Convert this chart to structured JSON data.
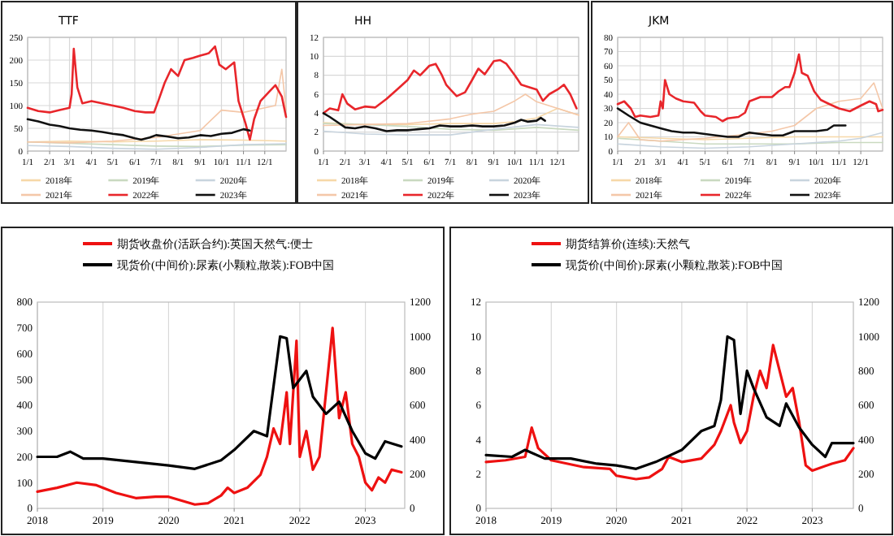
{
  "chart_data": [
    {
      "type": "line",
      "title": "TTF",
      "xlim": [
        "--01-01",
        "--12-31"
      ],
      "xticks": [
        {
          "value": "--01-01",
          "label": "1/1"
        },
        {
          "value": "--02-01",
          "label": "2/1"
        },
        {
          "value": "--03-01",
          "label": "3/1"
        },
        {
          "value": "--04-01",
          "label": "4/1"
        },
        {
          "value": "--05-01",
          "label": "5/1"
        },
        {
          "value": "--06-01",
          "label": "6/1"
        },
        {
          "value": "--07-01",
          "label": "7/1"
        },
        {
          "value": "--08-01",
          "label": "8/1"
        },
        {
          "value": "--09-01",
          "label": "9/1"
        },
        {
          "value": "--10-01",
          "label": "10/1"
        },
        {
          "value": "--11-01",
          "label": "11/1"
        },
        {
          "value": "--12-01",
          "label": "12/1"
        }
      ],
      "ylim": [
        0,
        250
      ],
      "yticks": [
        0,
        50,
        100,
        150,
        200,
        250
      ],
      "grid": true,
      "legend": "bottom",
      "series": [
        {
          "name": "2018年",
          "color": "#f6d8a8",
          "x": [
            "--01-01",
            "--03-01",
            "--05-01",
            "--07-01",
            "--09-01",
            "--11-01",
            "--12-31"
          ],
          "values": [
            20,
            22,
            20,
            22,
            25,
            24,
            22
          ]
        },
        {
          "name": "2019年",
          "color": "#c9d9c0",
          "x": [
            "--01-01",
            "--03-01",
            "--05-01",
            "--07-01",
            "--09-01",
            "--11-01",
            "--12-31"
          ],
          "values": [
            20,
            17,
            14,
            11,
            10,
            13,
            14
          ]
        },
        {
          "name": "2020年",
          "color": "#c8d4de",
          "x": [
            "--01-01",
            "--03-01",
            "--05-01",
            "--07-01",
            "--09-01",
            "--11-01",
            "--12-31"
          ],
          "values": [
            12,
            10,
            6,
            4,
            8,
            14,
            16
          ]
        },
        {
          "name": "2021年",
          "color": "#f4c7a8",
          "x": [
            "--01-01",
            "--03-01",
            "--05-01",
            "--07-01",
            "--09-01",
            "--10-01",
            "--11-01",
            "--12-01",
            "--12-16",
            "--12-25",
            "--12-31"
          ],
          "values": [
            20,
            18,
            22,
            30,
            45,
            90,
            85,
            95,
            100,
            180,
            90
          ]
        },
        {
          "name": "2022年",
          "color": "#e8262b",
          "x": [
            "--01-01",
            "--01-16",
            "--02-01",
            "--02-15",
            "--03-01",
            "--03-04",
            "--03-07",
            "--03-12",
            "--03-19",
            "--04-01",
            "--04-16",
            "--05-01",
            "--05-16",
            "--06-01",
            "--06-16",
            "--06-28",
            "--07-04",
            "--07-13",
            "--07-22",
            "--08-01",
            "--08-10",
            "--08-22",
            "--09-01",
            "--09-13",
            "--09-22",
            "--09-28",
            "--10-07",
            "--10-19",
            "--10-25",
            "--11-04",
            "--11-10",
            "--11-16",
            "--11-25",
            "--12-07",
            "--12-16",
            "--12-25",
            "--12-31"
          ],
          "values": [
            95,
            88,
            85,
            90,
            95,
            125,
            225,
            140,
            105,
            110,
            105,
            100,
            95,
            88,
            85,
            85,
            110,
            150,
            180,
            165,
            200,
            205,
            210,
            215,
            230,
            190,
            180,
            195,
            110,
            60,
            25,
            70,
            110,
            130,
            145,
            120,
            75
          ]
        },
        {
          "name": "2023年",
          "color": "#111111",
          "x": [
            "--01-01",
            "--01-16",
            "--02-01",
            "--02-15",
            "--03-01",
            "--03-16",
            "--04-01",
            "--04-16",
            "--05-01",
            "--05-16",
            "--06-01",
            "--06-10",
            "--06-22",
            "--07-01",
            "--07-16",
            "--08-01",
            "--08-16",
            "--09-01",
            "--09-16",
            "--10-01",
            "--10-16",
            "--11-01",
            "--11-10"
          ],
          "values": [
            70,
            65,
            58,
            55,
            50,
            47,
            45,
            42,
            38,
            35,
            28,
            25,
            30,
            35,
            32,
            28,
            30,
            35,
            33,
            38,
            40,
            48,
            45
          ]
        }
      ]
    },
    {
      "type": "line",
      "title": "HH",
      "xlim": [
        "--01-01",
        "--12-31"
      ],
      "xticks": [
        {
          "value": "--01-01",
          "label": "1/1"
        },
        {
          "value": "--02-01",
          "label": "2/1"
        },
        {
          "value": "--03-01",
          "label": "3/1"
        },
        {
          "value": "--04-01",
          "label": "4/1"
        },
        {
          "value": "--05-01",
          "label": "5/1"
        },
        {
          "value": "--06-01",
          "label": "6/1"
        },
        {
          "value": "--07-01",
          "label": "7/1"
        },
        {
          "value": "--08-01",
          "label": "8/1"
        },
        {
          "value": "--09-01",
          "label": "9/1"
        },
        {
          "value": "--10-01",
          "label": "10/1"
        },
        {
          "value": "--11-01",
          "label": "11/1"
        },
        {
          "value": "--12-01",
          "label": "12/1"
        }
      ],
      "ylim": [
        0,
        12
      ],
      "yticks": [
        0,
        2,
        4,
        6,
        8,
        10,
        12
      ],
      "grid": true,
      "legend": "bottom",
      "series": [
        {
          "name": "2018年",
          "color": "#f6d8a8",
          "x": [
            "--01-01",
            "--03-01",
            "--05-01",
            "--07-01",
            "--09-01",
            "--10-01",
            "--11-01",
            "--12-01",
            "--12-31"
          ],
          "values": [
            3,
            2.8,
            2.8,
            2.9,
            2.9,
            3.1,
            3.5,
            4.5,
            3.8
          ]
        },
        {
          "name": "2019年",
          "color": "#c9d9c0",
          "x": [
            "--01-01",
            "--03-01",
            "--05-01",
            "--07-01",
            "--09-01",
            "--11-01",
            "--12-31"
          ],
          "values": [
            2.9,
            2.8,
            2.6,
            2.3,
            2.2,
            2.5,
            2.2
          ]
        },
        {
          "name": "2020年",
          "color": "#c8d4de",
          "x": [
            "--01-01",
            "--03-01",
            "--05-01",
            "--07-01",
            "--09-01",
            "--11-01",
            "--12-31"
          ],
          "values": [
            2.1,
            1.8,
            1.7,
            1.7,
            2.3,
            2.8,
            2.5
          ]
        },
        {
          "name": "2021年",
          "color": "#f4c7a8",
          "x": [
            "--01-01",
            "--03-01",
            "--05-01",
            "--07-01",
            "--08-01",
            "--09-01",
            "--10-01",
            "--10-16",
            "--11-01",
            "--12-01",
            "--12-31"
          ],
          "values": [
            2.7,
            2.8,
            2.9,
            3.4,
            3.9,
            4.2,
            5.3,
            6,
            5.2,
            4.5,
            3.8
          ]
        },
        {
          "name": "2022年",
          "color": "#e8262b",
          "x": [
            "--01-01",
            "--01-10",
            "--01-22",
            "--01-28",
            "--02-04",
            "--02-15",
            "--03-01",
            "--03-16",
            "--04-01",
            "--04-16",
            "--05-01",
            "--05-10",
            "--05-19",
            "--06-01",
            "--06-10",
            "--06-19",
            "--06-25",
            "--07-01",
            "--07-10",
            "--07-22",
            "--08-01",
            "--08-10",
            "--08-19",
            "--09-01",
            "--09-10",
            "--09-19",
            "--10-01",
            "--10-10",
            "--10-19",
            "--11-01",
            "--11-10",
            "--11-19",
            "--12-01",
            "--12-10",
            "--12-19",
            "--12-28"
          ],
          "values": [
            4,
            4.5,
            4.3,
            6,
            5,
            4.4,
            4.7,
            4.6,
            5.5,
            6.5,
            7.5,
            8.5,
            8,
            9,
            9.2,
            8,
            7,
            6.5,
            5.8,
            6.2,
            7.5,
            8.7,
            8.1,
            9.5,
            9.6,
            9.2,
            8,
            7,
            6.8,
            6.5,
            5.3,
            6,
            6.5,
            7,
            6,
            4.5
          ]
        },
        {
          "name": "2023年",
          "color": "#111111",
          "x": [
            "--01-01",
            "--01-10",
            "--01-22",
            "--02-01",
            "--02-15",
            "--03-01",
            "--03-16",
            "--04-01",
            "--04-16",
            "--05-01",
            "--05-16",
            "--06-01",
            "--06-16",
            "--07-01",
            "--07-16",
            "--08-01",
            "--08-16",
            "--09-01",
            "--09-16",
            "--10-01",
            "--10-10",
            "--10-19",
            "--11-01",
            "--11-07",
            "--11-13"
          ],
          "values": [
            4,
            3.6,
            3,
            2.5,
            2.4,
            2.6,
            2.4,
            2.1,
            2.2,
            2.2,
            2.3,
            2.4,
            2.7,
            2.6,
            2.6,
            2.7,
            2.6,
            2.6,
            2.7,
            3,
            3.3,
            3.1,
            3.2,
            3.5,
            3.2
          ]
        }
      ]
    },
    {
      "type": "line",
      "title": "JKM",
      "xlim": [
        "--01-01",
        "--12-31"
      ],
      "xticks": [
        {
          "value": "--01-01",
          "label": "1/1"
        },
        {
          "value": "--02-01",
          "label": "2/1"
        },
        {
          "value": "--03-01",
          "label": "3/1"
        },
        {
          "value": "--04-01",
          "label": "4/1"
        },
        {
          "value": "--05-01",
          "label": "5/1"
        },
        {
          "value": "--06-01",
          "label": "6/1"
        },
        {
          "value": "--07-01",
          "label": "7/1"
        },
        {
          "value": "--08-01",
          "label": "8/1"
        },
        {
          "value": "--09-01",
          "label": "9/1"
        },
        {
          "value": "--10-01",
          "label": "10/1"
        },
        {
          "value": "--11-01",
          "label": "11/1"
        },
        {
          "value": "--12-01",
          "label": "12/1"
        }
      ],
      "ylim": [
        0,
        80
      ],
      "yticks": [
        0,
        10,
        20,
        30,
        40,
        50,
        60,
        70,
        80
      ],
      "grid": true,
      "legend": "bottom",
      "series": [
        {
          "name": "2018年",
          "color": "#f6d8a8",
          "x": [
            "--01-01",
            "--03-01",
            "--05-01",
            "--07-01",
            "--09-01",
            "--11-01",
            "--12-31"
          ],
          "values": [
            10,
            9,
            8,
            9,
            10,
            10,
            10
          ]
        },
        {
          "name": "2019年",
          "color": "#c9d9c0",
          "x": [
            "--01-01",
            "--03-01",
            "--05-01",
            "--07-01",
            "--09-01",
            "--11-01",
            "--12-31"
          ],
          "values": [
            9,
            7,
            5,
            5,
            5,
            6,
            6
          ]
        },
        {
          "name": "2020年",
          "color": "#c8d4de",
          "x": [
            "--01-01",
            "--03-01",
            "--05-01",
            "--07-01",
            "--09-01",
            "--11-01",
            "--12-01",
            "--12-31"
          ],
          "values": [
            5,
            3,
            2,
            3,
            5,
            7,
            9,
            13
          ]
        },
        {
          "name": "2021年",
          "color": "#f4c7a8",
          "x": [
            "--01-01",
            "--01-16",
            "--02-01",
            "--03-01",
            "--05-01",
            "--07-01",
            "--08-01",
            "--09-01",
            "--10-01",
            "--11-01",
            "--12-01",
            "--12-19",
            "--12-31"
          ],
          "values": [
            10,
            20,
            8,
            7,
            9,
            12,
            14,
            18,
            30,
            35,
            37,
            48,
            30
          ]
        },
        {
          "name": "2022年",
          "color": "#e8262b",
          "x": [
            "--01-01",
            "--01-10",
            "--01-19",
            "--01-25",
            "--02-01",
            "--02-15",
            "--02-26",
            "--03-01",
            "--03-04",
            "--03-07",
            "--03-13",
            "--03-22",
            "--04-01",
            "--04-16",
            "--04-25",
            "--05-01",
            "--05-16",
            "--05-25",
            "--06-01",
            "--06-16",
            "--06-25",
            "--07-01",
            "--07-16",
            "--08-01",
            "--08-10",
            "--08-19",
            "--08-25",
            "--09-01",
            "--09-07",
            "--09-11",
            "--09-19",
            "--09-28",
            "--10-07",
            "--10-19",
            "--11-01",
            "--11-16",
            "--12-01",
            "--12-13",
            "--12-22",
            "--12-25",
            "--12-31"
          ],
          "values": [
            33,
            35,
            30,
            24,
            25,
            24,
            25,
            35,
            30,
            50,
            40,
            37,
            35,
            34,
            28,
            25,
            24,
            21,
            23,
            24,
            27,
            35,
            38,
            38,
            42,
            45,
            45,
            55,
            68,
            55,
            53,
            42,
            36,
            33,
            30,
            28,
            32,
            35,
            33,
            28,
            29
          ]
        },
        {
          "name": "2023年",
          "color": "#111111",
          "x": [
            "--01-01",
            "--01-16",
            "--02-01",
            "--02-15",
            "--03-01",
            "--03-16",
            "--04-01",
            "--04-16",
            "--05-01",
            "--05-16",
            "--06-01",
            "--06-16",
            "--06-25",
            "--07-01",
            "--07-16",
            "--08-01",
            "--08-16",
            "--09-01",
            "--09-16",
            "--10-01",
            "--10-16",
            "--10-25",
            "--11-10"
          ],
          "values": [
            30,
            25,
            20,
            18,
            16,
            14,
            13,
            13,
            12,
            11,
            10,
            10,
            12,
            13,
            12,
            11,
            11,
            14,
            14,
            14,
            15,
            18,
            18
          ]
        }
      ]
    },
    {
      "type": "line",
      "xlim": [
        2018,
        2023.6
      ],
      "xticks": [
        2018,
        2019,
        2020,
        2021,
        2022,
        2023
      ],
      "ylim": [
        0,
        800
      ],
      "yticks": [
        0,
        100,
        200,
        300,
        400,
        500,
        600,
        700,
        800
      ],
      "y2lim": [
        0,
        1200
      ],
      "y2ticks": [
        0,
        200,
        400,
        600,
        800,
        1000,
        1200
      ],
      "grid": "x",
      "legend": "top",
      "series": [
        {
          "name": "期货收盘价(活跃合约):英国天然气:便士",
          "color": "#ee1111",
          "x": [
            2018,
            2018.3,
            2018.6,
            2018.9,
            2019.2,
            2019.5,
            2019.8,
            2020,
            2020.2,
            2020.4,
            2020.6,
            2020.8,
            2020.9,
            2021,
            2021.2,
            2021.4,
            2021.5,
            2021.6,
            2021.7,
            2021.8,
            2021.85,
            2021.95,
            2022,
            2022.1,
            2022.2,
            2022.3,
            2022.4,
            2022.5,
            2022.6,
            2022.7,
            2022.8,
            2022.9,
            2023,
            2023.1,
            2023.2,
            2023.3,
            2023.4,
            2023.55
          ],
          "values": [
            65,
            80,
            100,
            90,
            60,
            40,
            45,
            45,
            30,
            15,
            20,
            50,
            80,
            60,
            80,
            130,
            200,
            310,
            250,
            450,
            250,
            650,
            200,
            300,
            150,
            200,
            450,
            700,
            350,
            450,
            250,
            200,
            100,
            70,
            120,
            100,
            150,
            140
          ]
        },
        {
          "name": "现货价(中间价):尿素(小颗粒,散装):FOB中国",
          "color": "#000000",
          "axis": "y2",
          "x": [
            2018,
            2018.3,
            2018.5,
            2018.7,
            2019,
            2019.5,
            2020,
            2020.4,
            2020.8,
            2021,
            2021.3,
            2021.5,
            2021.7,
            2021.8,
            2021.9,
            2022,
            2022.1,
            2022.2,
            2022.4,
            2022.6,
            2022.8,
            2023,
            2023.15,
            2023.3,
            2023.55
          ],
          "values": [
            300,
            300,
            330,
            290,
            290,
            270,
            250,
            230,
            280,
            340,
            450,
            420,
            1000,
            990,
            700,
            750,
            800,
            650,
            550,
            620,
            450,
            320,
            290,
            390,
            360
          ]
        }
      ]
    },
    {
      "type": "line",
      "xlim": [
        2018,
        2023.63
      ],
      "xticks": [
        2018,
        2019,
        2020,
        2021,
        2022,
        2023
      ],
      "ylim": [
        0,
        12
      ],
      "yticks": [
        0,
        2,
        4,
        6,
        8,
        10,
        12
      ],
      "y2lim": [
        0,
        1200
      ],
      "y2ticks": [
        0,
        200,
        400,
        600,
        800,
        1000,
        1200
      ],
      "grid": "x",
      "legend": "top",
      "series": [
        {
          "name": "期货结算价(连续):天然气",
          "color": "#ee1111",
          "x": [
            2018,
            2018.3,
            2018.6,
            2018.7,
            2018.8,
            2019,
            2019.5,
            2019.9,
            2020,
            2020.3,
            2020.5,
            2020.7,
            2020.8,
            2021,
            2021.3,
            2021.5,
            2021.6,
            2021.75,
            2021.8,
            2021.9,
            2022,
            2022.1,
            2022.2,
            2022.3,
            2022.4,
            2022.5,
            2022.6,
            2022.7,
            2022.8,
            2022.9,
            2023,
            2023.3,
            2023.5,
            2023.63
          ],
          "values": [
            2.7,
            2.8,
            3,
            4.7,
            3.5,
            2.8,
            2.4,
            2.3,
            1.9,
            1.7,
            1.8,
            2.3,
            3,
            2.7,
            2.9,
            3.7,
            4.5,
            6,
            5,
            3.8,
            4.5,
            6.5,
            8,
            7,
            9.5,
            8,
            6.5,
            7,
            5,
            2.5,
            2.2,
            2.6,
            2.8,
            3.5
          ]
        },
        {
          "name": "现货价(中间价):尿素(小颗粒,散装):FOB中国",
          "color": "#000000",
          "axis": "y2",
          "x": [
            2018,
            2018.4,
            2018.6,
            2018.9,
            2019.3,
            2019.7,
            2020,
            2020.3,
            2020.6,
            2021,
            2021.3,
            2021.5,
            2021.6,
            2021.7,
            2021.8,
            2021.9,
            2022,
            2022.1,
            2022.3,
            2022.5,
            2022.6,
            2022.8,
            2023,
            2023.2,
            2023.3,
            2023.63
          ],
          "values": [
            310,
            300,
            340,
            290,
            290,
            260,
            250,
            230,
            270,
            340,
            450,
            480,
            630,
            1000,
            980,
            550,
            800,
            700,
            530,
            480,
            610,
            470,
            370,
            300,
            380,
            380
          ]
        }
      ]
    }
  ]
}
